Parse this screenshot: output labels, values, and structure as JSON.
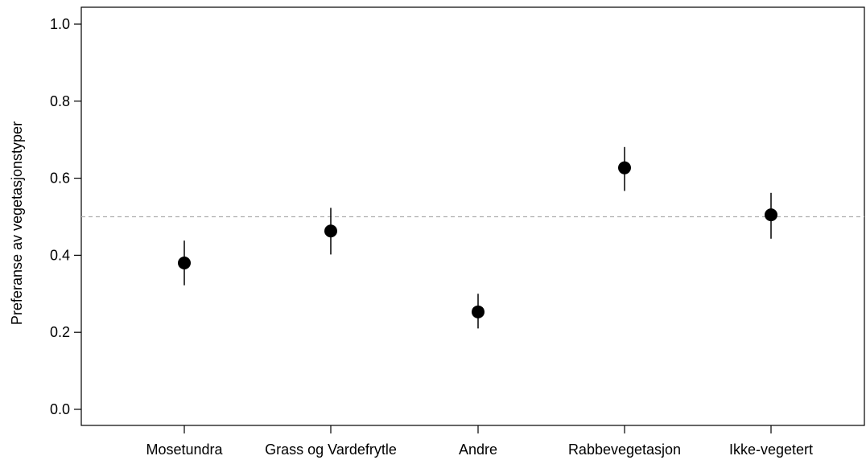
{
  "chart_data": {
    "type": "scatter",
    "title": "",
    "xlabel": "",
    "ylabel": "Preferanse av vegetasjonstyper",
    "categories": [
      "Mosetundra",
      "Grass og Vardefrytle",
      "Andre",
      "Rabbevegetasjon",
      "Ikke-vegetert"
    ],
    "series": [
      {
        "values": [
          0.38,
          0.463,
          0.253,
          0.627,
          0.505
        ],
        "lower": [
          0.322,
          0.402,
          0.21,
          0.567,
          0.443
        ],
        "upper": [
          0.438,
          0.523,
          0.3,
          0.681,
          0.562
        ]
      }
    ],
    "reference_line": 0.5,
    "ylim": [
      0.0,
      1.0
    ],
    "yticks": [
      "0.0",
      "0.2",
      "0.4",
      "0.6",
      "0.8",
      "1.0"
    ],
    "grid": false,
    "legend": "none",
    "colors": {
      "point": "#000000",
      "errorbar": "#000000",
      "reference_line": "#b0b0b0",
      "axis": "#000000"
    }
  }
}
